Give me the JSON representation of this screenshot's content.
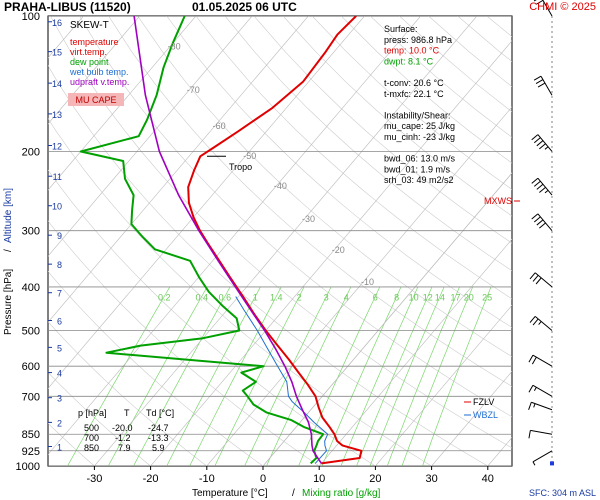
{
  "header": {
    "title": "PRAHA-LIBUS (11520)",
    "datetime": "01.05.2025 06 UTC",
    "copyright": "CHMI © 2025"
  },
  "legend": {
    "title": "SKEW-T",
    "items": [
      {
        "label": "temperature",
        "color": "#e00000"
      },
      {
        "label": "virt.temp.",
        "color": "#e00000"
      },
      {
        "label": "dew point",
        "color": "#00a000"
      },
      {
        "label": "wet bulb temp.",
        "color": "#1e6fd0"
      },
      {
        "label": "udpraft v.temp.",
        "color": "#a000c0"
      }
    ],
    "badge": "MU CAPE",
    "badge_color": "#f4b6b6"
  },
  "surface_info": [
    {
      "text": "Surface:",
      "color": "#000000"
    },
    {
      "text": "press: 986.8 hPa",
      "color": "#000000"
    },
    {
      "text": "temp: 10.0 °C",
      "color": "#e00000"
    },
    {
      "text": "dwpt: 8.1 °C",
      "color": "#00a000"
    },
    {
      "text": "",
      "color": "#000000"
    },
    {
      "text": "t-conv: 20.6 °C",
      "color": "#000000"
    },
    {
      "text": "t-mxfc: 22.1 °C",
      "color": "#000000"
    },
    {
      "text": "",
      "color": "#000000"
    },
    {
      "text": "Instability/Shear:",
      "color": "#000000"
    },
    {
      "text": "mu_cape: 25 J/kg",
      "color": "#000000"
    },
    {
      "text": "mu_cinh: -23 J/kg",
      "color": "#000000"
    },
    {
      "text": "",
      "color": "#000000"
    },
    {
      "text": "bwd_06: 13.0 m/s",
      "color": "#000000"
    },
    {
      "text": "bwd_01: 1.9 m/s",
      "color": "#000000"
    },
    {
      "text": "srh_03: 49 m2/s2",
      "color": "#000000"
    }
  ],
  "table": {
    "headers": [
      "p [hPa]",
      "T",
      "Td [°C]"
    ],
    "rows": [
      [
        "500",
        "-20.0",
        "-24.7"
      ],
      [
        "700",
        "-1.2",
        "-13.3"
      ],
      [
        "850",
        "7.9",
        "5.9"
      ]
    ]
  },
  "labels": {
    "tropo": "Tropo",
    "mxws": "MXWS",
    "fzlv": "FZLV",
    "wbzl": "WBZL",
    "sfc": "SFC: 304 m ASL",
    "mixing_ratio_label": "Mixing ratio [g/kg]",
    "x_separator": "/"
  },
  "colors": {
    "temperature": "#e00000",
    "dewpoint": "#00a000",
    "wetbulb": "#1e6fd0",
    "parcel": "#a000c0",
    "isobar": "#888888",
    "isotherm": "#bbbbbb",
    "dry_adiabat": "#cccccc",
    "mixing_ratio": "#7ad86a",
    "altitude": "#1a3aa0",
    "wind": "#000000"
  },
  "chart_data": {
    "type": "line",
    "title": "SKEW-T",
    "xlabel": "Temperature [°C]",
    "ylabel": "Pressure [hPa]",
    "y2label": "Altitude [km]",
    "xlim": [
      -35,
      45
    ],
    "ylim": [
      1000,
      100
    ],
    "y_log_scale": true,
    "skewed_isotherms": true,
    "x_ticks": [
      -30,
      -20,
      -10,
      0,
      10,
      20,
      30,
      40
    ],
    "pressure_ticks": [
      100,
      200,
      300,
      400,
      500,
      600,
      700,
      850,
      925,
      1000
    ],
    "altitude_ticks": [
      1,
      2,
      3,
      4,
      5,
      6,
      7,
      8,
      9,
      10,
      11,
      12,
      13,
      14,
      15,
      16
    ],
    "isotherm_labels": [
      -80,
      -70,
      -60,
      -50,
      -40,
      -30,
      -20,
      -10
    ],
    "mixing_ratio_ticks": [
      "0.2",
      "0.4",
      "0.6",
      "1",
      "1.4",
      "2",
      "3",
      "4",
      "6",
      "8",
      "10",
      "12",
      "14",
      "17",
      "20",
      "25"
    ],
    "tropopause_hpa": 205,
    "series": [
      {
        "name": "temperature",
        "points": [
          [
            986.8,
            10.0
          ],
          [
            960,
            16.0
          ],
          [
            925,
            15.2
          ],
          [
            900,
            11.0
          ],
          [
            880,
            9.4
          ],
          [
            850,
            7.9
          ],
          [
            820,
            6.0
          ],
          [
            780,
            3.2
          ],
          [
            740,
            1.0
          ],
          [
            700,
            -1.2
          ],
          [
            660,
            -4.3
          ],
          [
            620,
            -7.8
          ],
          [
            580,
            -11.5
          ],
          [
            540,
            -15.6
          ],
          [
            500,
            -20.0
          ],
          [
            460,
            -24.5
          ],
          [
            420,
            -29.2
          ],
          [
            380,
            -34.5
          ],
          [
            350,
            -38.8
          ],
          [
            320,
            -43.5
          ],
          [
            300,
            -46.8
          ],
          [
            280,
            -50.0
          ],
          [
            260,
            -53.0
          ],
          [
            240,
            -55.5
          ],
          [
            220,
            -57.0
          ],
          [
            205,
            -58.0
          ],
          [
            195,
            -56.8
          ],
          [
            180,
            -55.0
          ],
          [
            160,
            -52.5
          ],
          [
            140,
            -51.0
          ],
          [
            120,
            -51.5
          ],
          [
            110,
            -52.0
          ],
          [
            100,
            -51.5
          ]
        ]
      },
      {
        "name": "dew point",
        "points": [
          [
            986.8,
            8.1
          ],
          [
            960,
            8.3
          ],
          [
            925,
            6.8
          ],
          [
            900,
            6.4
          ],
          [
            880,
            6.0
          ],
          [
            850,
            5.9
          ],
          [
            820,
            1.5
          ],
          [
            790,
            -2.0
          ],
          [
            760,
            -7.5
          ],
          [
            730,
            -11.0
          ],
          [
            700,
            -13.3
          ],
          [
            680,
            -15.0
          ],
          [
            650,
            -14.0
          ],
          [
            620,
            -18.0
          ],
          [
            600,
            -15.0
          ],
          [
            580,
            -30.0
          ],
          [
            560,
            -45.0
          ],
          [
            540,
            -40.0
          ],
          [
            520,
            -30.0
          ],
          [
            500,
            -24.7
          ],
          [
            470,
            -27.0
          ],
          [
            440,
            -31.5
          ],
          [
            410,
            -36.0
          ],
          [
            380,
            -40.0
          ],
          [
            350,
            -44.0
          ],
          [
            330,
            -52.0
          ],
          [
            310,
            -56.0
          ],
          [
            290,
            -60.0
          ],
          [
            270,
            -62.0
          ],
          [
            250,
            -64.0
          ],
          [
            230,
            -68.0
          ],
          [
            210,
            -71.0
          ],
          [
            200,
            -80.0
          ],
          [
            185,
            -72.0
          ],
          [
            170,
            -73.0
          ],
          [
            150,
            -75.0
          ],
          [
            130,
            -78.0
          ],
          [
            115,
            -80.0
          ],
          [
            100,
            -82.0
          ]
        ]
      },
      {
        "name": "wet bulb temp.",
        "points": [
          [
            986.8,
            8.9
          ],
          [
            925,
            9.0
          ],
          [
            900,
            7.9
          ],
          [
            880,
            7.2
          ],
          [
            850,
            6.7
          ],
          [
            800,
            2.5
          ],
          [
            760,
            -0.8
          ],
          [
            720,
            -4.5
          ],
          [
            700,
            -6.0
          ],
          [
            650,
            -8.5
          ],
          [
            600,
            -12.5
          ],
          [
            550,
            -16.8
          ],
          [
            500,
            -21.5
          ],
          [
            450,
            -27.0
          ],
          [
            420,
            -30.5
          ]
        ]
      },
      {
        "name": "udpraft v.temp.",
        "points": [
          [
            986.8,
            10.0
          ],
          [
            925,
            6.6
          ],
          [
            900,
            5.6
          ],
          [
            850,
            3.8
          ],
          [
            800,
            1.5
          ],
          [
            750,
            -1.5
          ],
          [
            700,
            -4.6
          ],
          [
            650,
            -7.6
          ],
          [
            600,
            -11.2
          ],
          [
            550,
            -15.4
          ],
          [
            500,
            -20.2
          ],
          [
            450,
            -25.8
          ],
          [
            400,
            -32.0
          ],
          [
            350,
            -39.0
          ],
          [
            300,
            -47.0
          ],
          [
            250,
            -56.0
          ],
          [
            200,
            -66.0
          ],
          [
            150,
            -77.0
          ],
          [
            100,
            -91.0
          ]
        ]
      }
    ],
    "wind_profile": [
      {
        "p": 986.8,
        "dir": 0,
        "speed_kt": 0
      },
      {
        "p": 925,
        "dir": 240,
        "speed_kt": 5
      },
      {
        "p": 850,
        "dir": 280,
        "speed_kt": 10
      },
      {
        "p": 750,
        "dir": 290,
        "speed_kt": 15
      },
      {
        "p": 700,
        "dir": 300,
        "speed_kt": 15
      },
      {
        "p": 600,
        "dir": 300,
        "speed_kt": 20
      },
      {
        "p": 500,
        "dir": 310,
        "speed_kt": 25
      },
      {
        "p": 400,
        "dir": 310,
        "speed_kt": 30
      },
      {
        "p": 300,
        "dir": 320,
        "speed_kt": 40
      },
      {
        "p": 250,
        "dir": 320,
        "speed_kt": 45
      },
      {
        "p": 200,
        "dir": 320,
        "speed_kt": 45
      },
      {
        "p": 150,
        "dir": 330,
        "speed_kt": 30
      },
      {
        "p": 100,
        "dir": 330,
        "speed_kt": 20
      }
    ]
  }
}
